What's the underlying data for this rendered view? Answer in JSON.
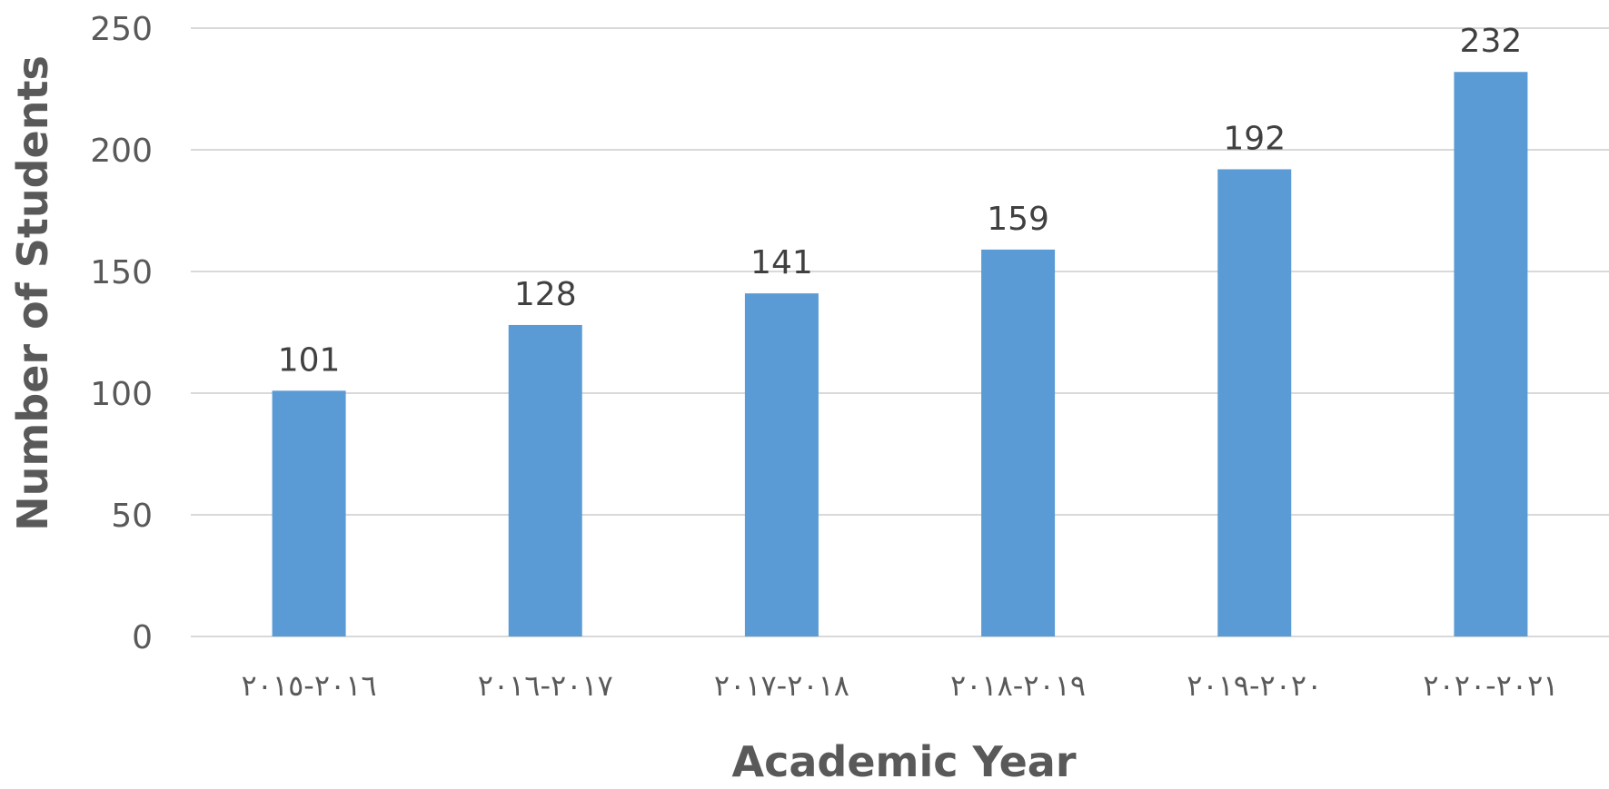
{
  "chart_data": {
    "type": "bar",
    "title": "",
    "xlabel": "Academic Year",
    "ylabel": "Number of Students",
    "categories": [
      "٢٠١٦-٢٠١٥",
      "٢٠١٧-٢٠١٦",
      "٢٠١٨-٢٠١٧",
      "٢٠١٩-٢٠١٨",
      "٢٠٢٠-٢٠١٩",
      "٢٠٢١-٢٠٢٠"
    ],
    "values": [
      101,
      128,
      141,
      159,
      192,
      232
    ],
    "ylim": [
      0,
      250
    ],
    "yticks": [
      0,
      50,
      100,
      150,
      200,
      250
    ],
    "data_labels": true,
    "grid": true,
    "legend": "none",
    "colors": {
      "bar": "#5b9bd5",
      "grid": "#d9d9d9",
      "tick_text": "#595959",
      "axis_title": "#595959",
      "data_label": "#404040"
    }
  }
}
